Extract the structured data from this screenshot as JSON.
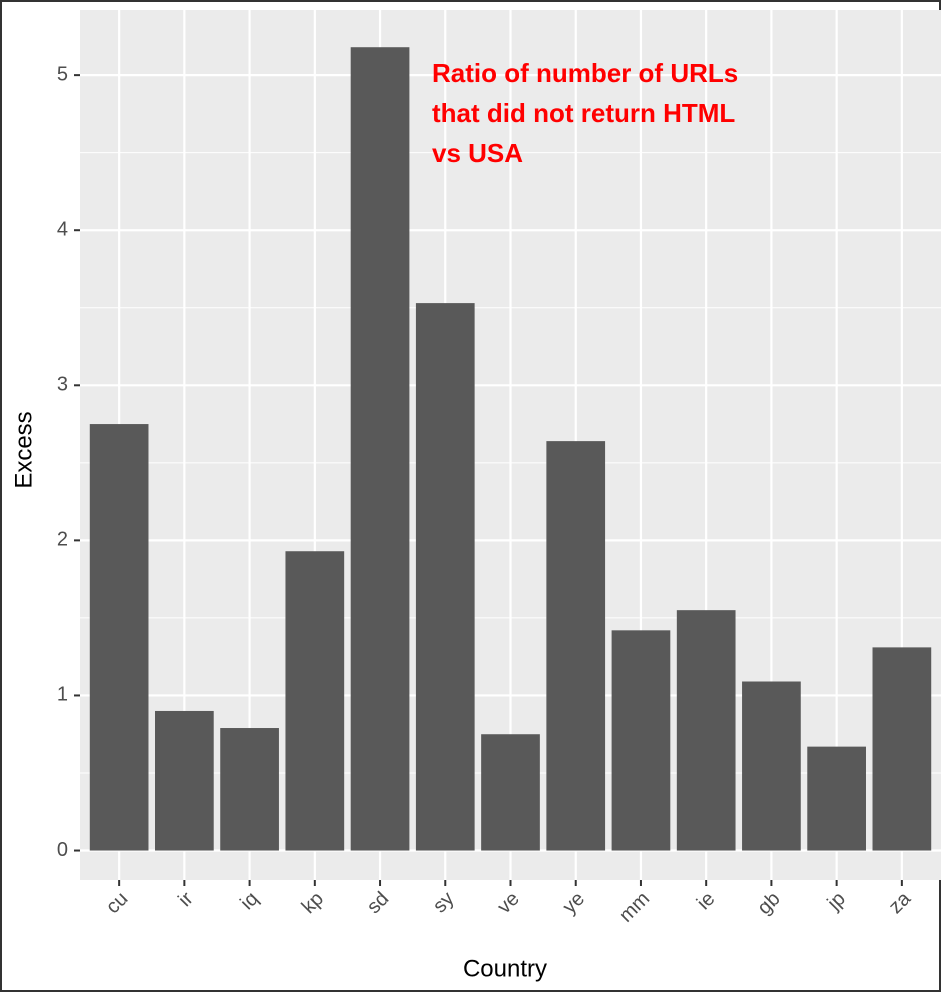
{
  "chart_data": {
    "type": "bar",
    "annotation": [
      "Ratio of number of URLs",
      "that did not return HTML",
      "vs USA"
    ],
    "x_label": "Country",
    "y_label": "Excess",
    "categories": [
      "cu",
      "ir",
      "iq",
      "kp",
      "sd",
      "sy",
      "ve",
      "ye",
      "mm",
      "ie",
      "gb",
      "jp",
      "za"
    ],
    "values": [
      2.75,
      0.9,
      0.79,
      1.93,
      5.18,
      3.53,
      0.75,
      2.64,
      1.42,
      1.55,
      1.09,
      0.67,
      1.31
    ],
    "color": "#595959",
    "ylim": [
      -0.19,
      5.42
    ],
    "yticks": [
      0,
      1,
      2,
      3,
      4,
      5
    ],
    "grid": true
  }
}
